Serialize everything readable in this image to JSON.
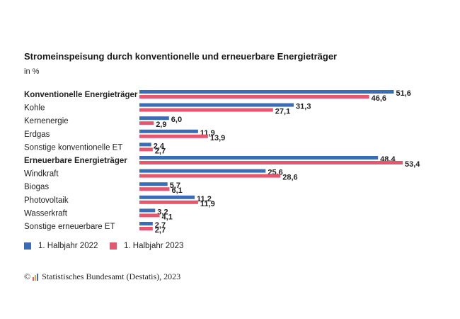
{
  "chart_data": {
    "type": "bar",
    "orientation": "horizontal",
    "title": "Stromeinspeisung durch konventionelle und erneuerbare Energieträger",
    "subtitle": "in %",
    "categories": [
      "Konventionelle Energieträger",
      "Kohle",
      "Kernenergie",
      "Erdgas",
      "Sonstige konventionelle ET",
      "Erneuerbare Energieträger",
      "Windkraft",
      "Biogas",
      "Photovoltaik",
      "Wasserkraft",
      "Sonstige erneuerbare ET"
    ],
    "bold_categories": [
      "Konventionelle Energieträger",
      "Erneuerbare Energieträger"
    ],
    "series": [
      {
        "name": "1. Halbjahr 2022",
        "color": "#3a6db5",
        "values": [
          51.6,
          31.3,
          6.0,
          11.9,
          2.4,
          48.4,
          25.6,
          5.7,
          11.2,
          3.2,
          2.7
        ],
        "labels": [
          "51,6",
          "31,3",
          "6,0",
          "11,9",
          "2,4",
          "48,4",
          "25,6",
          "5,7",
          "11,2",
          "3,2",
          "2,7"
        ]
      },
      {
        "name": "1. Halbjahr 2023",
        "color": "#e6566e",
        "values": [
          46.6,
          27.1,
          2.9,
          13.9,
          2.7,
          53.4,
          28.6,
          6.1,
          11.9,
          4.1,
          2.7
        ],
        "labels": [
          "46,6",
          "27,1",
          "2,9",
          "13,9",
          "2,7",
          "53,4",
          "28,6",
          "6,1",
          "11,9",
          "4,1",
          "2,7"
        ]
      }
    ],
    "xlim": [
      0,
      53.4
    ],
    "grid": false,
    "legend_position": "bottom-left"
  },
  "source": "Statistisches Bundesamt (Destatis), 2023",
  "copyright_symbol": "©"
}
